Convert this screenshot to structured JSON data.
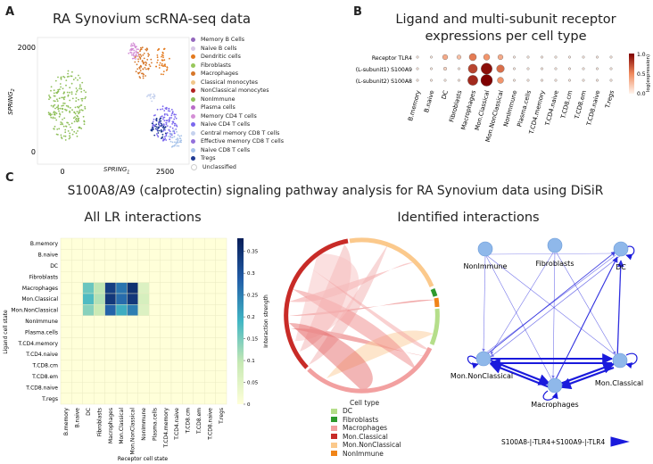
{
  "panels": {
    "a": {
      "letter": "A",
      "title": "RA Synovium scRNA-seq data"
    },
    "b": {
      "letter": "B",
      "title_line1": "Ligand and multi-subunit receptor",
      "title_line2": "expressions per cell type"
    },
    "c": {
      "letter": "C",
      "title": "S100A8/A9 (calprotectin) signaling pathway analysis for RA Synovium data using DiSiR",
      "heatmap_title": "All LR interactions",
      "network_title": "Identified interactions"
    }
  },
  "colors": {
    "heat_low": "#ffffd9",
    "heat_mid": "#41b6c4",
    "heat_high": "#081d58",
    "node": "#8fb8ea",
    "edge": "#1a1adc"
  },
  "scatter": {
    "xlabel": "SPRING",
    "xlabel_sub": "1",
    "ylabel": "SPRING",
    "ylabel_sub": "2",
    "xticks": [
      "0",
      "2500"
    ],
    "yticks": [
      "0",
      "2000"
    ],
    "legend": [
      {
        "label": "Memory B Cells",
        "color": "#9467bd"
      },
      {
        "label": "Naive B cells",
        "color": "#d7c6e6"
      },
      {
        "label": "Dendritic cells",
        "color": "#e37a1e"
      },
      {
        "label": "Fibroblasts",
        "color": "#98c75b"
      },
      {
        "label": "Macrophages",
        "color": "#d6772a"
      },
      {
        "label": "Classical monocytes",
        "color": "#f1c68a"
      },
      {
        "label": "NonClassical monocytes",
        "color": "#b22222"
      },
      {
        "label": "NonImmune",
        "color": "#8fbf5a"
      },
      {
        "label": "Plasma cells",
        "color": "#b96bc9"
      },
      {
        "label": "Memory CD4 T cells",
        "color": "#d48fd6"
      },
      {
        "label": "Naive CD4 T cells",
        "color": "#7b68ee"
      },
      {
        "label": "Central memory CD8 T cells",
        "color": "#c6d2ee"
      },
      {
        "label": "Effective memory CD8 T cells",
        "color": "#9370db"
      },
      {
        "label": "Naive CD8 T cells",
        "color": "#a9c4ea"
      },
      {
        "label": "Tregs",
        "color": "#1f3a93"
      },
      {
        "label": "Unclassified",
        "color": "#ffffff"
      }
    ]
  },
  "dotplot": {
    "rows": [
      "Receptor  TLR4",
      "(L-subunit1) S100A9",
      "(L-subunit2) S100A8"
    ],
    "columns": [
      "B.memory",
      "B.naive",
      "DC",
      "Fibroblasts",
      "Macrophages",
      "Mon.Classical",
      "Mon.NonClassical",
      "NonImmune",
      "Plasma.cells",
      "T.CD4.memory",
      "T.CD4.naive",
      "T.CD8.cm",
      "T.CD8.em",
      "T.CD8.naive",
      "T.regs"
    ],
    "values": [
      [
        0.05,
        0.05,
        0.35,
        0.25,
        0.55,
        0.45,
        0.35,
        0.05,
        0.05,
        0.05,
        0.05,
        0.05,
        0.05,
        0.05,
        0.05
      ],
      [
        0.05,
        0.05,
        0.15,
        0.05,
        0.75,
        0.95,
        0.6,
        0.05,
        0.05,
        0.05,
        0.05,
        0.05,
        0.05,
        0.05,
        0.05
      ],
      [
        0.05,
        0.05,
        0.05,
        0.05,
        0.85,
        1.0,
        0.45,
        0.05,
        0.05,
        0.05,
        0.05,
        0.05,
        0.05,
        0.05,
        0.05
      ]
    ],
    "colorbar_label": "log(expression)",
    "colorbar_ticks": [
      "1.0",
      "0.5",
      "0.0"
    ]
  },
  "chart_data": {
    "type": "heatmap",
    "title": "All LR interactions",
    "xlabel": "Receptor cell state",
    "ylabel": "Ligand cell state",
    "rows": [
      "B.memory",
      "B.naive",
      "DC",
      "Fibroblasts",
      "Macrophages",
      "Mon.Classical",
      "Mon.NonClassical",
      "NonImmune",
      "Plasma.cells",
      "T.CD4.memory",
      "T.CD4.naive",
      "T.CD8.cm",
      "T.CD8.em",
      "T.CD8.naive",
      "T.regs"
    ],
    "columns": [
      "B.memory",
      "B.naive",
      "DC",
      "Fibroblasts",
      "Macrophages",
      "Mon.Classical",
      "Mon.NonClassical",
      "NonImmune",
      "Plasma.cells",
      "T.CD4.memory",
      "T.CD4.naive",
      "T.CD8.cm",
      "T.CD8.em",
      "T.CD8.naive",
      "T.regs"
    ],
    "values": [
      [
        0,
        0,
        0,
        0,
        0,
        0,
        0,
        0,
        0,
        0,
        0,
        0,
        0,
        0,
        0
      ],
      [
        0,
        0,
        0,
        0,
        0,
        0,
        0,
        0,
        0,
        0,
        0,
        0,
        0,
        0,
        0
      ],
      [
        0,
        0,
        0,
        0,
        0,
        0,
        0,
        0,
        0,
        0,
        0,
        0,
        0,
        0,
        0
      ],
      [
        0,
        0,
        0,
        0,
        0,
        0,
        0,
        0,
        0,
        0,
        0,
        0,
        0,
        0,
        0
      ],
      [
        0,
        0,
        0.16,
        0.1,
        0.33,
        0.26,
        0.35,
        0.06,
        0,
        0,
        0,
        0,
        0,
        0,
        0
      ],
      [
        0,
        0,
        0.18,
        0.11,
        0.34,
        0.27,
        0.34,
        0.07,
        0,
        0,
        0,
        0,
        0,
        0,
        0
      ],
      [
        0,
        0,
        0.14,
        0.09,
        0.28,
        0.2,
        0.25,
        0.06,
        0,
        0,
        0,
        0,
        0,
        0,
        0
      ],
      [
        0,
        0,
        0,
        0,
        0,
        0,
        0,
        0,
        0,
        0,
        0,
        0,
        0,
        0,
        0
      ],
      [
        0,
        0,
        0,
        0,
        0,
        0,
        0,
        0,
        0,
        0,
        0,
        0,
        0,
        0,
        0
      ],
      [
        0,
        0,
        0,
        0,
        0,
        0,
        0,
        0,
        0,
        0,
        0,
        0,
        0,
        0,
        0
      ],
      [
        0,
        0,
        0,
        0,
        0,
        0,
        0,
        0,
        0,
        0,
        0,
        0,
        0,
        0,
        0
      ],
      [
        0,
        0,
        0,
        0,
        0,
        0,
        0,
        0,
        0,
        0,
        0,
        0,
        0,
        0,
        0
      ],
      [
        0,
        0,
        0,
        0,
        0,
        0,
        0,
        0,
        0,
        0,
        0,
        0,
        0,
        0,
        0
      ],
      [
        0,
        0,
        0,
        0,
        0,
        0,
        0,
        0,
        0,
        0,
        0,
        0,
        0,
        0,
        0
      ],
      [
        0,
        0,
        0,
        0,
        0,
        0,
        0,
        0,
        0,
        0,
        0,
        0,
        0,
        0,
        0
      ]
    ],
    "colorbar_label": "Interaction strength",
    "colorbar_ticks": [
      0,
      0.05,
      0.1,
      0.15,
      0.2,
      0.25,
      0.3,
      0.35
    ],
    "vmin": 0,
    "vmax": 0.38
  },
  "chord": {
    "legend_title": "Cell type",
    "legend": [
      {
        "label": "DC",
        "color": "#b5de8a"
      },
      {
        "label": "Fibroblasts",
        "color": "#2e9a2e"
      },
      {
        "label": "Macrophages",
        "color": "#f2a0a0"
      },
      {
        "label": "Mon.Classical",
        "color": "#c82b27"
      },
      {
        "label": "Mon.NonClassical",
        "color": "#fbc98c"
      },
      {
        "label": "NonImmune",
        "color": "#f08418"
      }
    ]
  },
  "network": {
    "nodes": [
      "NonImmune",
      "Fibroblasts",
      "DC",
      "Mon.NonClassical",
      "Mon.Classical",
      "Macrophages"
    ],
    "edge_label": "S100A8-|-TLR4+S100A9-|-TLR4"
  }
}
